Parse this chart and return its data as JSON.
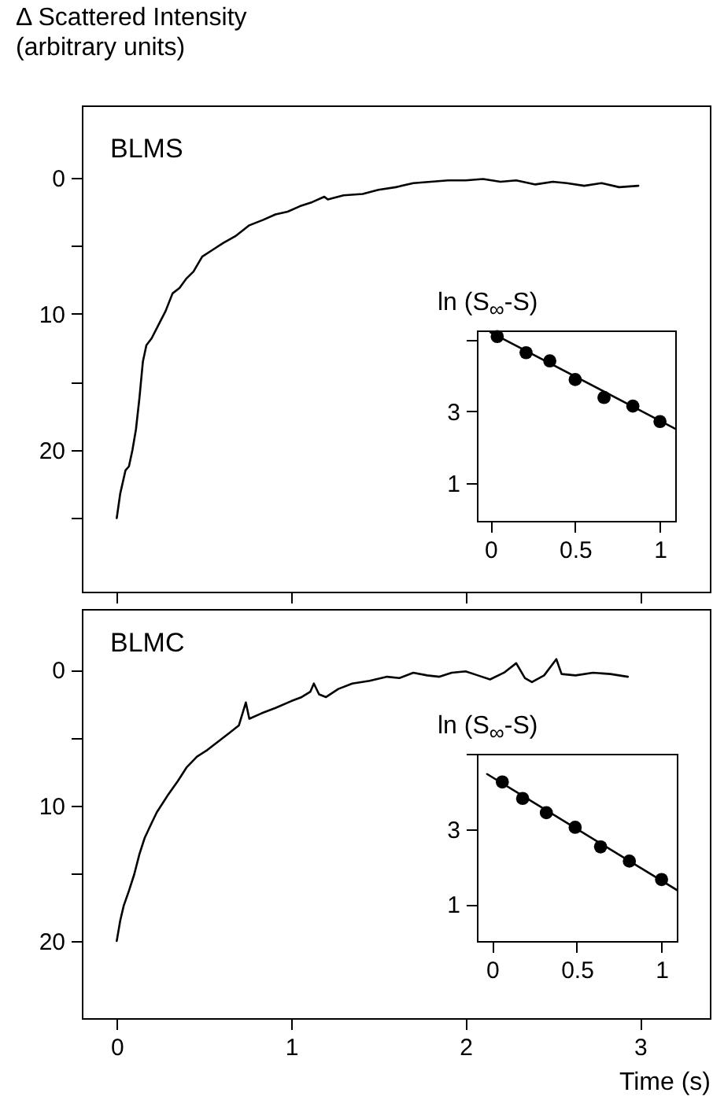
{
  "chart_data": [
    {
      "type": "line",
      "ylabel": "Δ Scattered Intensity (arbitrary units)",
      "annotations": [
        "BLMS"
      ],
      "xlim": [
        -0.2,
        3.4
      ],
      "xticks": [
        0,
        1,
        2,
        3
      ],
      "ylim": [
        30.4,
        -5.3
      ],
      "yticks": [
        0,
        {
          "value": 5,
          "label": null
        },
        10,
        {
          "value": 15,
          "label": null
        },
        20,
        {
          "value": 25,
          "label": null
        }
      ],
      "tick_labels": "y",
      "series": [
        {
          "color": "#000000",
          "x": [
            0,
            0.02,
            0.05,
            0.07,
            0.09,
            0.11,
            0.13,
            0.15,
            0.17,
            0.2,
            0.24,
            0.28,
            0.32,
            0.36,
            0.4,
            0.44,
            0.49,
            0.55,
            0.61,
            0.68,
            0.76,
            0.84,
            0.91,
            0.98,
            1.05,
            1.12,
            1.19,
            1.21,
            1.3,
            1.41,
            1.5,
            1.6,
            1.7,
            1.8,
            1.9,
            2.0,
            2.1,
            2.2,
            2.29,
            2.4,
            2.5,
            2.58,
            2.68,
            2.78,
            2.88,
            2.99
          ],
          "values": [
            25,
            23.2,
            21.5,
            21.2,
            20,
            18.5,
            16.2,
            13.5,
            12.3,
            11.8,
            10.8,
            9.8,
            8.5,
            8.1,
            7.4,
            6.9,
            5.8,
            5.3,
            4.8,
            4.3,
            3.5,
            3.1,
            2.7,
            2.5,
            2.1,
            1.8,
            1.4,
            1.6,
            1.3,
            1.2,
            0.9,
            0.7,
            0.4,
            0.3,
            0.2,
            0.2,
            0.1,
            0.3,
            0.2,
            0.5,
            0.3,
            0.4,
            0.6,
            0.4,
            0.7,
            0.6
          ]
        }
      ]
    },
    {
      "type": "scatter",
      "ylabel": "ln (S$_{∞}$-S)",
      "xlim": [
        -0.08,
        1.09
      ],
      "xticks": [
        0,
        0.5,
        1
      ],
      "ylim": [
        -0.06,
        5.25
      ],
      "yticks": [
        1,
        3,
        {
          "value": 5,
          "label": null
        }
      ],
      "series": [
        {
          "color": "#000000",
          "x": [
            0.04,
            0.21,
            0.35,
            0.5,
            0.67,
            0.84,
            1.0
          ],
          "values": [
            5.08,
            4.63,
            4.4,
            3.88,
            3.38,
            3.14,
            2.71
          ],
          "marker": "circle"
        },
        {
          "type": "line",
          "color": "#000000",
          "x": [
            0,
            1.09
          ],
          "values": [
            5.2,
            2.51
          ]
        }
      ]
    },
    {
      "type": "line",
      "xlabel": "Time (s)",
      "annotations": [
        "BLMC"
      ],
      "xlim": [
        -0.2,
        3.4
      ],
      "xticks": [
        0,
        1,
        2,
        3
      ],
      "ylim": [
        25.7,
        -4.5
      ],
      "yticks": [
        0,
        {
          "value": 5,
          "label": null
        },
        10,
        {
          "value": 15,
          "label": null
        },
        20
      ],
      "series": [
        {
          "color": "#000000",
          "x": [
            0,
            0.02,
            0.04,
            0.07,
            0.1,
            0.13,
            0.16,
            0.2,
            0.23,
            0.29,
            0.35,
            0.4,
            0.46,
            0.52,
            0.58,
            0.64,
            0.7,
            0.74,
            0.76,
            0.83,
            0.91,
            1.0,
            1.06,
            1.11,
            1.13,
            1.16,
            1.2,
            1.27,
            1.35,
            1.45,
            1.55,
            1.62,
            1.7,
            1.78,
            1.85,
            1.92,
            2.0,
            2.07,
            2.14,
            2.22,
            2.29,
            2.34,
            2.38,
            2.45,
            2.52,
            2.55,
            2.63,
            2.73,
            2.83,
            2.93
          ],
          "values": [
            20,
            18.5,
            17.4,
            16.3,
            15.1,
            13.6,
            12.4,
            11.3,
            10.5,
            9.3,
            8.2,
            7.2,
            6.4,
            5.9,
            5.3,
            4.7,
            4.1,
            2.4,
            3.6,
            3.2,
            2.8,
            2.3,
            2.0,
            1.6,
            1.0,
            1.8,
            2.0,
            1.4,
            1.0,
            0.8,
            0.5,
            0.6,
            0.2,
            0.4,
            0.5,
            0.2,
            0.1,
            0.4,
            0.7,
            0.2,
            -0.5,
            0.6,
            0.9,
            0.4,
            -0.8,
            0.3,
            0.4,
            0.2,
            0.3,
            0.5
          ]
        }
      ]
    },
    {
      "type": "scatter",
      "ylabel": "ln (S$_{∞}$-S)",
      "xlim": [
        -0.09,
        1.09
      ],
      "xticks": [
        0,
        0.5,
        1
      ],
      "ylim": [
        0.02,
        5.01
      ],
      "yticks": [
        1,
        3,
        {
          "value": 5,
          "label": null
        }
      ],
      "series": [
        {
          "color": "#000000",
          "x": [
            0.06,
            0.18,
            0.32,
            0.49,
            0.64,
            0.81,
            1.0
          ],
          "values": [
            4.26,
            3.82,
            3.44,
            3.05,
            2.53,
            2.15,
            1.66
          ],
          "marker": "circle"
        },
        {
          "type": "line",
          "color": "#000000",
          "x": [
            -0.03,
            1.09
          ],
          "values": [
            4.47,
            1.38
          ]
        }
      ]
    }
  ]
}
